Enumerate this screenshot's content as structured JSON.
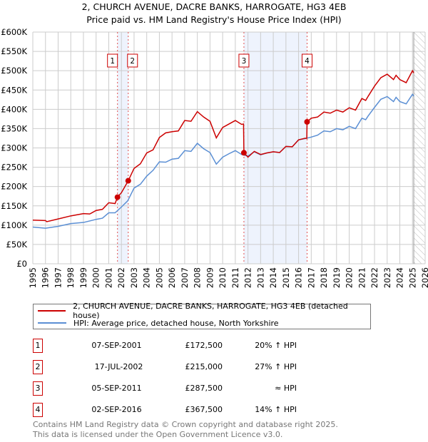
{
  "title": "2, CHURCH AVENUE, DACRE BANKS, HARROGATE, HG3 4EB",
  "subtitle": "Price paid vs. HM Land Registry's House Price Index (HPI)",
  "colors": {
    "property": "#cc0000",
    "hpi": "#5b8fd4",
    "shade": "#eef3fd",
    "grid": "#cccccc"
  },
  "chart_data": {
    "type": "line",
    "title": "Price paid vs. HM Land Registry's House Price Index (HPI)",
    "xlim": [
      1995,
      2026
    ],
    "ylim": [
      0,
      600000
    ],
    "grid": true,
    "x_ticks": [
      "1995",
      "1996",
      "1997",
      "1998",
      "1999",
      "2000",
      "2001",
      "2002",
      "2003",
      "2004",
      "2005",
      "2006",
      "2007",
      "2008",
      "2009",
      "2010",
      "2011",
      "2012",
      "2013",
      "2014",
      "2015",
      "2016",
      "2017",
      "2018",
      "2019",
      "2020",
      "2021",
      "2022",
      "2023",
      "2024",
      "2025",
      "2026"
    ],
    "y_ticks": [
      {
        "v": 0,
        "label": "£0"
      },
      {
        "v": 50000,
        "label": "£50K"
      },
      {
        "v": 100000,
        "label": "£100K"
      },
      {
        "v": 150000,
        "label": "£150K"
      },
      {
        "v": 200000,
        "label": "£200K"
      },
      {
        "v": 250000,
        "label": "£250K"
      },
      {
        "v": 300000,
        "label": "£300K"
      },
      {
        "v": 350000,
        "label": "£350K"
      },
      {
        "v": 400000,
        "label": "£400K"
      },
      {
        "v": 450000,
        "label": "£450K"
      },
      {
        "v": 500000,
        "label": "£500K"
      },
      {
        "v": 550000,
        "label": "£550K"
      },
      {
        "v": 600000,
        "label": "£600K"
      }
    ],
    "shaded_ranges": [
      [
        2001.69,
        2002.54
      ],
      [
        2011.68,
        2016.67
      ]
    ],
    "forecast_from": 2025.1,
    "series": [
      {
        "name": "2, CHURCH AVENUE, DACRE BANKS, HARROGATE, HG3 4EB (detached house)",
        "color": "#cc0000",
        "points": [
          [
            1995,
            113
          ],
          [
            1996,
            112
          ],
          [
            1996.1,
            109
          ],
          [
            1997,
            116
          ],
          [
            1998,
            124
          ],
          [
            1999,
            130
          ],
          [
            1999.5,
            129
          ],
          [
            2000,
            138
          ],
          [
            2000.5,
            141
          ],
          [
            2001,
            158
          ],
          [
            2001.5,
            156
          ],
          [
            2001.69,
            172.5
          ],
          [
            2002,
            184
          ],
          [
            2002.54,
            215
          ],
          [
            2003,
            247
          ],
          [
            2003.5,
            259
          ],
          [
            2004,
            287
          ],
          [
            2004.5,
            295
          ],
          [
            2005,
            327
          ],
          [
            2005.5,
            339
          ],
          [
            2006,
            342
          ],
          [
            2006.5,
            344
          ],
          [
            2007,
            371
          ],
          [
            2007.5,
            369
          ],
          [
            2008,
            394
          ],
          [
            2008.5,
            380
          ],
          [
            2009,
            369
          ],
          [
            2009.5,
            326
          ],
          [
            2010,
            353
          ],
          [
            2010.5,
            362
          ],
          [
            2011,
            371
          ],
          [
            2011.5,
            361
          ],
          [
            2011.65,
            362
          ],
          [
            2011.68,
            287.5
          ],
          [
            2012,
            276
          ],
          [
            2012.5,
            291
          ],
          [
            2013,
            283
          ],
          [
            2013.5,
            287
          ],
          [
            2014,
            290
          ],
          [
            2014.5,
            288
          ],
          [
            2015,
            304
          ],
          [
            2015.5,
            303
          ],
          [
            2016,
            321
          ],
          [
            2016.5,
            325
          ],
          [
            2016.65,
            325
          ],
          [
            2016.67,
            367.5
          ],
          [
            2017,
            377
          ],
          [
            2017.5,
            380
          ],
          [
            2018,
            393
          ],
          [
            2018.5,
            390
          ],
          [
            2019,
            398
          ],
          [
            2019.5,
            393
          ],
          [
            2020,
            404
          ],
          [
            2020.5,
            398
          ],
          [
            2021,
            428
          ],
          [
            2021.3,
            423
          ],
          [
            2021.5,
            434
          ],
          [
            2022,
            460
          ],
          [
            2022.5,
            482
          ],
          [
            2023,
            491
          ],
          [
            2023.5,
            477
          ],
          [
            2023.7,
            488
          ],
          [
            2024,
            477
          ],
          [
            2024.5,
            469
          ],
          [
            2025,
            500
          ],
          [
            2025.1,
            494
          ]
        ]
      },
      {
        "name": "HPI: Average price, detached house, North Yorkshire",
        "color": "#5b8fd4",
        "points": [
          [
            1995,
            95
          ],
          [
            1996,
            92
          ],
          [
            1997,
            97
          ],
          [
            1998,
            104
          ],
          [
            1999,
            107
          ],
          [
            2000,
            115
          ],
          [
            2000.5,
            118
          ],
          [
            2001,
            132
          ],
          [
            2001.5,
            132
          ],
          [
            2002,
            147
          ],
          [
            2002.5,
            163
          ],
          [
            2003,
            196
          ],
          [
            2003.5,
            206
          ],
          [
            2004,
            227
          ],
          [
            2004.5,
            242
          ],
          [
            2005,
            264
          ],
          [
            2005.5,
            263
          ],
          [
            2006,
            271
          ],
          [
            2006.5,
            273
          ],
          [
            2007,
            293
          ],
          [
            2007.5,
            291
          ],
          [
            2008,
            312
          ],
          [
            2008.5,
            298
          ],
          [
            2009,
            288
          ],
          [
            2009.5,
            258
          ],
          [
            2010,
            276
          ],
          [
            2010.5,
            285
          ],
          [
            2011,
            293
          ],
          [
            2011.5,
            283
          ],
          [
            2012,
            279
          ],
          [
            2012.5,
            290
          ],
          [
            2013,
            282
          ],
          [
            2013.5,
            287
          ],
          [
            2014,
            290
          ],
          [
            2014.5,
            288
          ],
          [
            2015,
            304
          ],
          [
            2015.5,
            303
          ],
          [
            2016,
            321
          ],
          [
            2016.5,
            324
          ],
          [
            2017,
            328
          ],
          [
            2017.5,
            333
          ],
          [
            2018,
            344
          ],
          [
            2018.5,
            342
          ],
          [
            2019,
            350
          ],
          [
            2019.5,
            347
          ],
          [
            2020,
            356
          ],
          [
            2020.5,
            350
          ],
          [
            2021,
            377
          ],
          [
            2021.3,
            373
          ],
          [
            2021.5,
            383
          ],
          [
            2022,
            405
          ],
          [
            2022.5,
            426
          ],
          [
            2023,
            433
          ],
          [
            2023.5,
            420
          ],
          [
            2023.7,
            431
          ],
          [
            2024,
            420
          ],
          [
            2024.5,
            414
          ],
          [
            2025,
            439
          ],
          [
            2025.1,
            434
          ]
        ]
      }
    ],
    "sales": [
      {
        "label": "1",
        "x": 2001.69,
        "value": 172500
      },
      {
        "label": "2",
        "x": 2002.54,
        "value": 215000
      },
      {
        "label": "3",
        "x": 2011.68,
        "value": 287500
      },
      {
        "label": "4",
        "x": 2016.67,
        "value": 367500
      }
    ]
  },
  "legend": {
    "property": "2, CHURCH AVENUE, DACRE BANKS, HARROGATE, HG3 4EB (detached house)",
    "hpi": "HPI: Average price, detached house, North Yorkshire"
  },
  "transactions": [
    {
      "num": "1",
      "date": "07-SEP-2001",
      "price": "£172,500",
      "hpi": "20% ↑ HPI"
    },
    {
      "num": "2",
      "date": "17-JUL-2002",
      "price": "£215,000",
      "hpi": "27% ↑ HPI"
    },
    {
      "num": "3",
      "date": "05-SEP-2011",
      "price": "£287,500",
      "hpi": "≈ HPI"
    },
    {
      "num": "4",
      "date": "02-SEP-2016",
      "price": "£367,500",
      "hpi": "14% ↑ HPI"
    }
  ],
  "footer": {
    "line1": "Contains HM Land Registry data © Crown copyright and database right 2025.",
    "line2": "This data is licensed under the Open Government Licence v3.0."
  }
}
